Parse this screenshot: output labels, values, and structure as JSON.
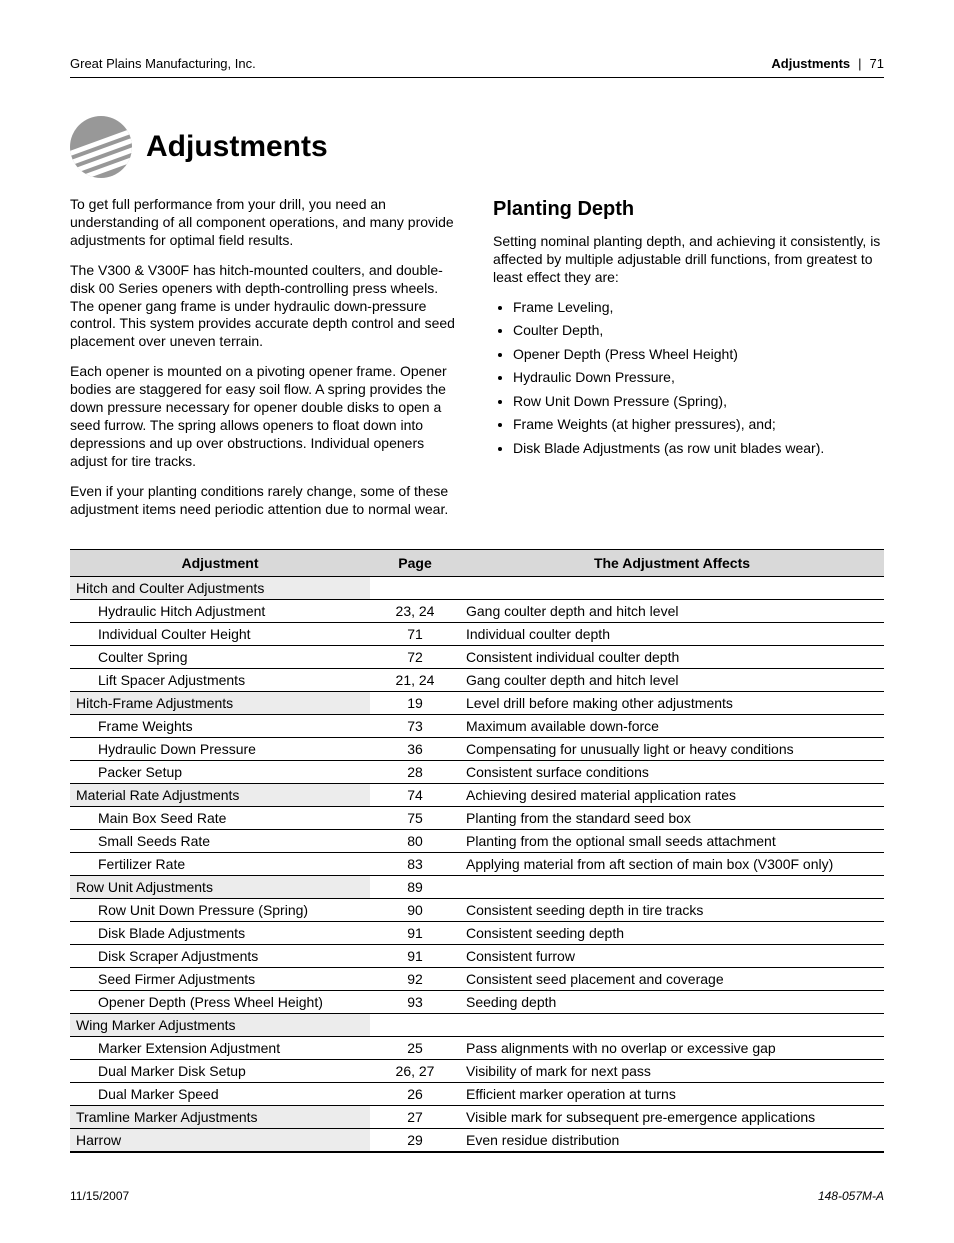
{
  "header": {
    "company": "Great Plains Manufacturing, Inc.",
    "section": "Adjustments",
    "page_num": "71"
  },
  "title": "Adjustments",
  "left_column": {
    "paragraphs": [
      "To get full performance from your drill, you need an understanding of all component operations, and many provide adjustments for optimal field results.",
      "The V300 & V300F has hitch-mounted coulters, and double-disk 00 Series openers with depth-controlling press wheels. The opener gang frame is under hydraulic down-pressure control. This system provides accurate depth control and seed placement over uneven terrain.",
      "Each opener is mounted on a pivoting opener frame. Opener bodies are staggered for easy soil flow. A spring provides the down pressure necessary for opener double disks to open a seed furrow. The spring allows openers to float down into depressions and up over obstructions. Individual openers adjust for tire tracks.",
      "Even if your planting conditions rarely change, some of these adjustment items need periodic attention due to normal wear."
    ]
  },
  "right_column": {
    "heading": "Planting Depth",
    "intro": "Setting nominal planting depth, and achieving it consistently, is affected by multiple adjustable drill functions, from greatest to least effect they are:",
    "bullets": [
      "Frame Leveling,",
      "Coulter Depth,",
      "Opener Depth (Press Wheel Height)",
      "Hydraulic Down Pressure,",
      "Row Unit Down Pressure (Spring),",
      "Frame Weights (at higher pressures), and;",
      "Disk Blade Adjustments (as row unit blades wear)."
    ]
  },
  "table": {
    "headers": {
      "adjustment": "Adjustment",
      "page": "Page",
      "affects": "The Adjustment Affects"
    },
    "rows": [
      {
        "type": "group",
        "name": "Hitch and Coulter Adjustments",
        "page": "",
        "affects": ""
      },
      {
        "type": "item",
        "name": "Hydraulic Hitch Adjustment",
        "page": "23, 24",
        "affects": "Gang coulter depth and hitch level"
      },
      {
        "type": "item",
        "name": "Individual Coulter Height",
        "page": "71",
        "affects": "Individual coulter depth"
      },
      {
        "type": "item",
        "name": "Coulter Spring",
        "page": "72",
        "affects": "Consistent individual coulter depth"
      },
      {
        "type": "item",
        "name": "Lift Spacer Adjustments",
        "page": "21, 24",
        "affects": "Gang coulter depth and hitch level"
      },
      {
        "type": "group",
        "name": "Hitch-Frame Adjustments",
        "page": "19",
        "affects": "Level drill before making other adjustments"
      },
      {
        "type": "item",
        "name": "Frame Weights",
        "page": "73",
        "affects": "Maximum available down-force"
      },
      {
        "type": "item",
        "name": "Hydraulic Down Pressure",
        "page": "36",
        "affects": "Compensating for unusually light or heavy conditions"
      },
      {
        "type": "item",
        "name": "Packer Setup",
        "page": "28",
        "affects": "Consistent surface conditions"
      },
      {
        "type": "group",
        "name": "Material Rate Adjustments",
        "page": "74",
        "affects": "Achieving desired material application rates"
      },
      {
        "type": "item",
        "name": "Main Box Seed Rate",
        "page": "75",
        "affects": "Planting from the standard seed box"
      },
      {
        "type": "item",
        "name": "Small Seeds Rate",
        "page": "80",
        "affects": "Planting from the optional small seeds attachment"
      },
      {
        "type": "item",
        "name": "Fertilizer Rate",
        "page": "83",
        "affects": "Applying material from aft section of main box (V300F only)"
      },
      {
        "type": "group",
        "name": "Row Unit Adjustments",
        "page": "89",
        "affects": ""
      },
      {
        "type": "item",
        "name": "Row Unit Down Pressure (Spring)",
        "page": "90",
        "affects": "Consistent seeding depth in tire tracks"
      },
      {
        "type": "item",
        "name": "Disk Blade Adjustments",
        "page": "91",
        "affects": "Consistent seeding depth"
      },
      {
        "type": "item",
        "name": "Disk Scraper Adjustments",
        "page": "91",
        "affects": "Consistent furrow"
      },
      {
        "type": "item",
        "name": "Seed Firmer Adjustments",
        "page": "92",
        "affects": "Consistent seed placement and coverage"
      },
      {
        "type": "item",
        "name": "Opener Depth (Press Wheel Height)",
        "page": "93",
        "affects": "Seeding depth"
      },
      {
        "type": "group",
        "name": "Wing Marker Adjustments",
        "page": "",
        "affects": ""
      },
      {
        "type": "item",
        "name": "Marker Extension Adjustment",
        "page": "25",
        "affects": "Pass alignments with no overlap or excessive gap"
      },
      {
        "type": "item",
        "name": "Dual Marker Disk Setup",
        "page": "26, 27",
        "affects": "Visibility of mark for next pass"
      },
      {
        "type": "item",
        "name": "Dual Marker Speed",
        "page": "26",
        "affects": "Efficient marker operation at turns"
      },
      {
        "type": "group",
        "name": "Tramline Marker Adjustments",
        "page": "27",
        "affects": "Visible mark for subsequent pre-emergence applications"
      },
      {
        "type": "group",
        "name": "Harrow",
        "page": "29",
        "affects": "Even residue distribution"
      }
    ]
  },
  "footer": {
    "date": "11/15/2007",
    "docnum": "148-057M-A"
  },
  "icon": {
    "circle_fill": "#989898",
    "stripe_fill": "#ffffff"
  }
}
